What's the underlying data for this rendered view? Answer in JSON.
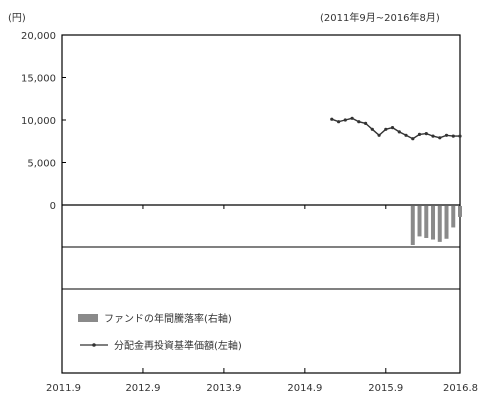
{
  "chart_data": {
    "type": "line",
    "title": "",
    "period_label": "(2011年9月~2016年8月)",
    "y_unit_label": "(円)",
    "ylim_left": [
      0,
      20000
    ],
    "y_ticks_left": [
      "20,000",
      "15,000",
      "10,000",
      "5,000",
      "0"
    ],
    "x_ticks": [
      "2011.9",
      "2012.9",
      "2013.9",
      "2014.9",
      "2015.9",
      "2016.8"
    ],
    "grid": false,
    "legend_placement": "bottom-left",
    "legend": {
      "bar_label": "ファンドの年間騰落率(右軸)",
      "line_label": "分配金再投資基準価額(左軸)"
    },
    "colors": {
      "bar": "#8a8a8a",
      "line": "#333333"
    },
    "series": [
      {
        "name": "分配金再投資基準価額(左軸)",
        "kind": "line",
        "x": [
          "2015.1",
          "2015.2",
          "2015.3",
          "2015.4",
          "2015.5",
          "2015.6",
          "2015.7",
          "2015.8",
          "2015.9",
          "2015.10",
          "2015.11",
          "2015.12",
          "2016.1",
          "2016.2",
          "2016.3",
          "2016.4",
          "2016.5",
          "2016.6",
          "2016.7",
          "2016.8"
        ],
        "values": [
          10100,
          9800,
          10000,
          10200,
          9800,
          9600,
          8900,
          8200,
          8900,
          9100,
          8600,
          8200,
          7800,
          8300,
          8400,
          8100,
          7900,
          8200,
          8100,
          8100
        ]
      },
      {
        "name": "ファンドの年間騰落率(右軸)",
        "kind": "bar",
        "x": [
          "2016.1",
          "2016.2",
          "2016.3",
          "2016.4",
          "2016.5",
          "2016.6",
          "2016.7",
          "2016.8"
        ],
        "relative_depth": [
          1.0,
          0.78,
          0.82,
          0.86,
          0.92,
          0.84,
          0.55,
          0.28
        ]
      }
    ]
  }
}
